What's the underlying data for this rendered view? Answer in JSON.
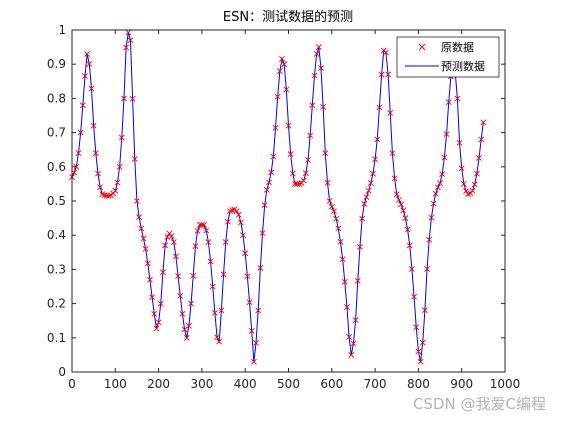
{
  "chart_data": {
    "type": "line",
    "title": "ESN：测试数据的预测",
    "xlabel": "",
    "ylabel": "",
    "xlim": [
      0,
      1000
    ],
    "ylim": [
      0,
      1
    ],
    "xticks": [
      0,
      100,
      200,
      300,
      400,
      500,
      600,
      700,
      800,
      900,
      1000
    ],
    "yticks": [
      0,
      0.1,
      0.2,
      0.3,
      0.4,
      0.5,
      0.6,
      0.7,
      0.8,
      0.9,
      1
    ],
    "grid": false,
    "legend_position": "top-right",
    "sample_step": 5,
    "x_end": 950,
    "curve_knots": [
      [
        0,
        0.57
      ],
      [
        10,
        0.6
      ],
      [
        20,
        0.7
      ],
      [
        28,
        0.83
      ],
      [
        35,
        0.93
      ],
      [
        42,
        0.88
      ],
      [
        50,
        0.72
      ],
      [
        60,
        0.58
      ],
      [
        70,
        0.52
      ],
      [
        85,
        0.515
      ],
      [
        100,
        0.53
      ],
      [
        110,
        0.6
      ],
      [
        120,
        0.8
      ],
      [
        128,
        0.995
      ],
      [
        135,
        0.97
      ],
      [
        142,
        0.72
      ],
      [
        150,
        0.5
      ],
      [
        160,
        0.42
      ],
      [
        170,
        0.36
      ],
      [
        180,
        0.27
      ],
      [
        190,
        0.17
      ],
      [
        196,
        0.125
      ],
      [
        205,
        0.2
      ],
      [
        215,
        0.37
      ],
      [
        225,
        0.405
      ],
      [
        235,
        0.38
      ],
      [
        245,
        0.28
      ],
      [
        255,
        0.17
      ],
      [
        265,
        0.1
      ],
      [
        275,
        0.2
      ],
      [
        288,
        0.4
      ],
      [
        295,
        0.43
      ],
      [
        305,
        0.43
      ],
      [
        315,
        0.38
      ],
      [
        325,
        0.25
      ],
      [
        333,
        0.13
      ],
      [
        338,
        0.075
      ],
      [
        345,
        0.18
      ],
      [
        355,
        0.38
      ],
      [
        365,
        0.47
      ],
      [
        375,
        0.475
      ],
      [
        385,
        0.46
      ],
      [
        395,
        0.4
      ],
      [
        405,
        0.28
      ],
      [
        415,
        0.12
      ],
      [
        420,
        0.03
      ],
      [
        428,
        0.14
      ],
      [
        438,
        0.37
      ],
      [
        448,
        0.52
      ],
      [
        458,
        0.57
      ],
      [
        465,
        0.63
      ],
      [
        472,
        0.75
      ],
      [
        480,
        0.88
      ],
      [
        487,
        0.92
      ],
      [
        493,
        0.86
      ],
      [
        500,
        0.72
      ],
      [
        508,
        0.6
      ],
      [
        515,
        0.55
      ],
      [
        525,
        0.55
      ],
      [
        535,
        0.56
      ],
      [
        545,
        0.62
      ],
      [
        555,
        0.78
      ],
      [
        565,
        0.93
      ],
      [
        570,
        0.95
      ],
      [
        577,
        0.85
      ],
      [
        585,
        0.64
      ],
      [
        595,
        0.5
      ],
      [
        605,
        0.47
      ],
      [
        615,
        0.42
      ],
      [
        625,
        0.33
      ],
      [
        635,
        0.19
      ],
      [
        645,
        0.05
      ],
      [
        653,
        0.12
      ],
      [
        663,
        0.33
      ],
      [
        673,
        0.48
      ],
      [
        685,
        0.53
      ],
      [
        695,
        0.58
      ],
      [
        705,
        0.68
      ],
      [
        715,
        0.87
      ],
      [
        722,
        0.95
      ],
      [
        730,
        0.87
      ],
      [
        740,
        0.64
      ],
      [
        750,
        0.52
      ],
      [
        760,
        0.49
      ],
      [
        770,
        0.45
      ],
      [
        780,
        0.37
      ],
      [
        790,
        0.22
      ],
      [
        800,
        0.06
      ],
      [
        805,
        0.03
      ],
      [
        812,
        0.12
      ],
      [
        822,
        0.34
      ],
      [
        832,
        0.47
      ],
      [
        842,
        0.53
      ],
      [
        852,
        0.56
      ],
      [
        862,
        0.65
      ],
      [
        872,
        0.82
      ],
      [
        880,
        0.91
      ],
      [
        888,
        0.84
      ],
      [
        895,
        0.67
      ],
      [
        905,
        0.55
      ],
      [
        915,
        0.52
      ],
      [
        925,
        0.53
      ],
      [
        935,
        0.58
      ],
      [
        945,
        0.68
      ],
      [
        950,
        0.73
      ]
    ],
    "series": [
      {
        "name": "原数据",
        "style": "marker-x",
        "color": "#ff0000"
      },
      {
        "name": "预测数据",
        "style": "line",
        "color": "#0000ff"
      }
    ]
  },
  "watermark": "CSDN @我爱C编程"
}
